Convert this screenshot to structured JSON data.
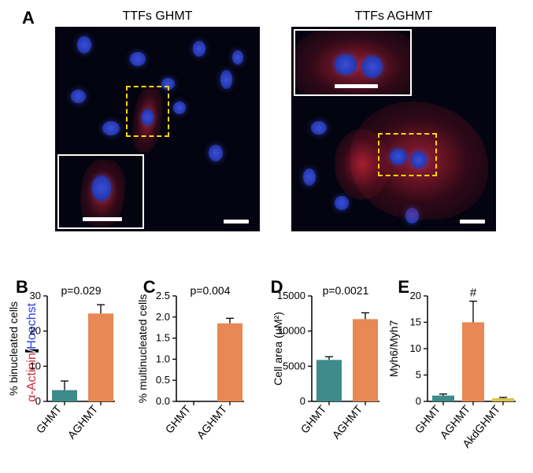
{
  "panels": {
    "A": {
      "label": "A"
    },
    "B": {
      "label": "B"
    },
    "C": {
      "label": "C"
    },
    "D": {
      "label": "D"
    },
    "E": {
      "label": "E"
    }
  },
  "microscopy": {
    "left_title": "TTFs GHMT",
    "right_title": "TTFs AGHMT",
    "stain_red": "α-Actinin",
    "stain_sep": "/",
    "stain_blue": "Hoechst"
  },
  "chartB": {
    "ylabel": "% binucleated cells",
    "categories": [
      "GHMT",
      "AGHMT"
    ],
    "values": [
      3.2,
      25.0
    ],
    "errors": [
      2.6,
      2.5
    ],
    "colors": [
      "#3d8b8b",
      "#e88854"
    ],
    "ylim": [
      0,
      30
    ],
    "ytick_step": 10,
    "pvalue": "p=0.029"
  },
  "chartC": {
    "ylabel": "% multinucleated cells",
    "categories": [
      "GHMT",
      "AGHMT"
    ],
    "values": [
      0,
      1.85
    ],
    "errors": [
      0,
      0.12
    ],
    "colors": [
      "#3d8b8b",
      "#e88854"
    ],
    "ylim": [
      0,
      2.5
    ],
    "ytick_step": 0.5,
    "pvalue": "p=0.004"
  },
  "chartD": {
    "ylabel": "Cell area (µM²)",
    "categories": [
      "GHMT",
      "AGHMT"
    ],
    "values": [
      5900,
      11700
    ],
    "errors": [
      450,
      900
    ],
    "colors": [
      "#3d8b8b",
      "#e88854"
    ],
    "ylim": [
      0,
      15000
    ],
    "ytick_step": 5000,
    "pvalue": "p=0.0021"
  },
  "chartE": {
    "ylabel": "Myh6/Myh7",
    "categories": [
      "GHMT",
      "AGHMT",
      "AkdGHMT"
    ],
    "values": [
      1.1,
      15.0,
      0.6
    ],
    "errors": [
      0.3,
      4.0,
      0.15
    ],
    "colors": [
      "#3d8b8b",
      "#e88854",
      "#e0c44a"
    ],
    "ylim": [
      0,
      20
    ],
    "ytick_step": 5,
    "hash_annotation": "#"
  },
  "style": {
    "axis_color": "#000000",
    "text_color": "#000000",
    "background": "#ffffff",
    "micro_bg": "#040410",
    "nucleus_color": "#2a40c8",
    "actinin_color": "#d82838",
    "inset_border": "#ffd700",
    "scale_bar_color": "#ffffff"
  }
}
